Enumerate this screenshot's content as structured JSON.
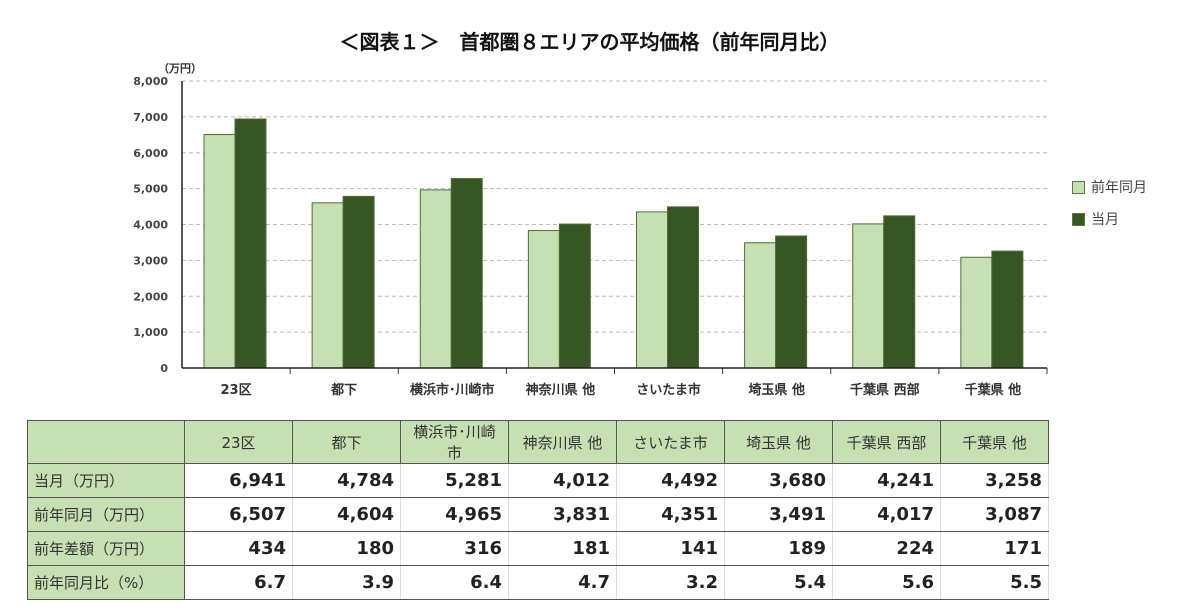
{
  "chart_data": {
    "type": "bar",
    "title": "＜図表１＞　首都圏８エリアの平均価格（前年同月比）",
    "ylabel": "（万円）",
    "ylim": [
      0,
      8000
    ],
    "yticks": [
      "0",
      "1,000",
      "2,000",
      "3,000",
      "4,000",
      "5,000",
      "6,000",
      "7,000",
      "8,000"
    ],
    "grid": true,
    "legend": "right",
    "categories": [
      "23区",
      "都下",
      "横浜市･川崎市",
      "神奈川県 他",
      "さいたま市",
      "埼玉県 他",
      "千葉県 西部",
      "千葉県 他"
    ],
    "series": [
      {
        "name": "前年同月",
        "color": "#c6e0b4",
        "values": [
          6507,
          4604,
          4965,
          3831,
          4351,
          3491,
          4017,
          3087
        ]
      },
      {
        "name": "当月",
        "color": "#375623",
        "values": [
          6941,
          4784,
          5281,
          4012,
          4492,
          3680,
          4241,
          3258
        ]
      }
    ]
  },
  "table": {
    "headers": [
      "23区",
      "都下",
      "横浜市･川崎市",
      "神奈川県 他",
      "さいたま市",
      "埼玉県 他",
      "千葉県 西部",
      "千葉県 他"
    ],
    "rows": [
      {
        "label": "当月（万円）",
        "values": [
          "6,941",
          "4,784",
          "5,281",
          "4,012",
          "4,492",
          "3,680",
          "4,241",
          "3,258"
        ]
      },
      {
        "label": "前年同月（万円）",
        "values": [
          "6,507",
          "4,604",
          "4,965",
          "3,831",
          "4,351",
          "3,491",
          "4,017",
          "3,087"
        ]
      },
      {
        "label": "前年差額（万円）",
        "values": [
          "434",
          "180",
          "316",
          "181",
          "141",
          "189",
          "224",
          "171"
        ]
      },
      {
        "label": "前年同月比（%）",
        "values": [
          "6.7",
          "3.9",
          "6.4",
          "4.7",
          "3.2",
          "5.4",
          "5.6",
          "5.5"
        ]
      }
    ]
  }
}
